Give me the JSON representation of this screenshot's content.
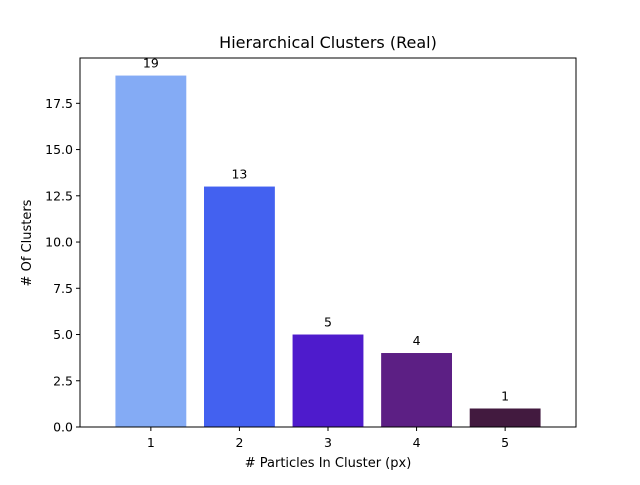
{
  "chart_data": {
    "type": "bar",
    "title": "Hierarchical Clusters (Real)",
    "xlabel": "# Particles In Cluster (px)",
    "ylabel": "# Of Clusters",
    "categories": [
      "1",
      "2",
      "3",
      "4",
      "5"
    ],
    "values": [
      19,
      13,
      5,
      4,
      1
    ],
    "data_labels": [
      "19",
      "13",
      "5",
      "4",
      "1"
    ],
    "bar_colors": [
      "#84abf5",
      "#4361f0",
      "#4e1bcc",
      "#5c1f84",
      "#421a3f"
    ],
    "ylim": [
      0,
      19.95
    ],
    "yticks": [
      0,
      2.5,
      5,
      7.5,
      10,
      12.5,
      15,
      17.5
    ],
    "ytick_labels": [
      "0.0",
      "2.5",
      "5.0",
      "7.5",
      "10.0",
      "12.5",
      "15.0",
      "17.5"
    ],
    "grid": false,
    "legend": false
  }
}
